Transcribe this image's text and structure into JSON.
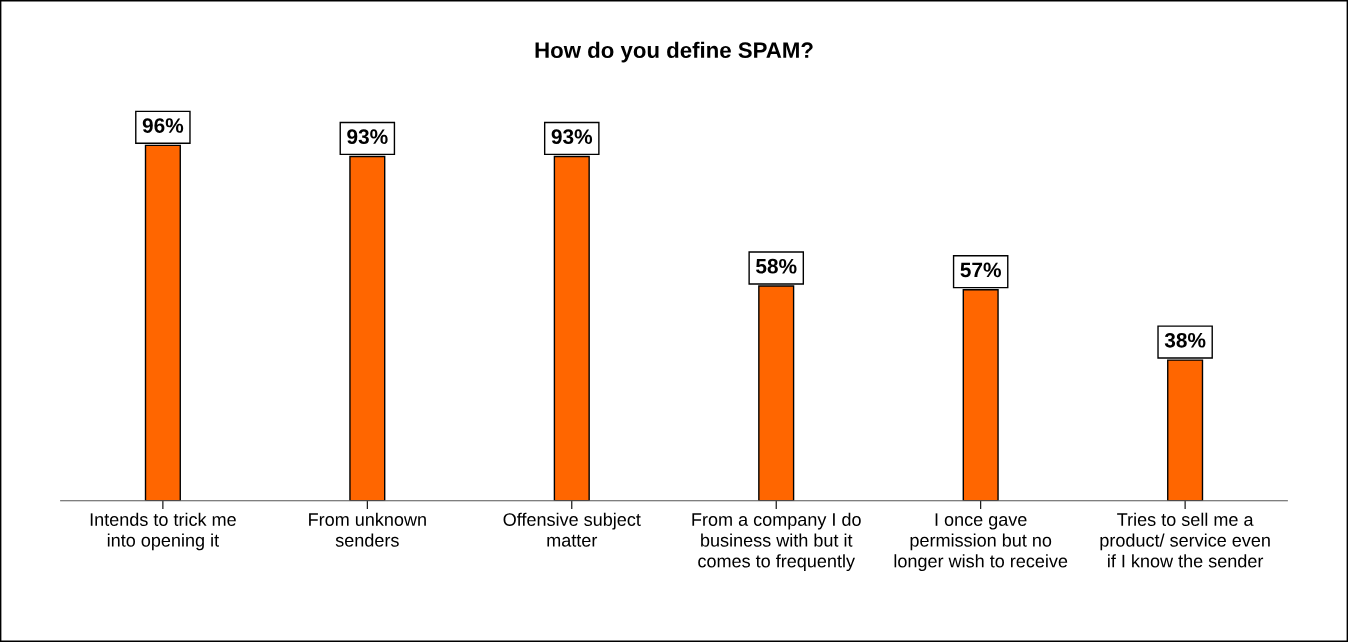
{
  "chart_data": {
    "type": "bar",
    "title": "How do you define SPAM?",
    "categories": [
      "Intends to trick me into opening it",
      "From unknown senders",
      "Offensive subject matter",
      "From a company I do business with but it comes to frequently",
      "I once gave permission but no longer wish to receive",
      "Tries to sell me a product/ service even if I know the sender"
    ],
    "values": [
      96,
      93,
      93,
      58,
      57,
      38
    ],
    "value_labels": [
      "96%",
      "93%",
      "93%",
      "58%",
      "57%",
      "38%"
    ],
    "color": "#ff6600",
    "grid": false,
    "legend": false
  }
}
